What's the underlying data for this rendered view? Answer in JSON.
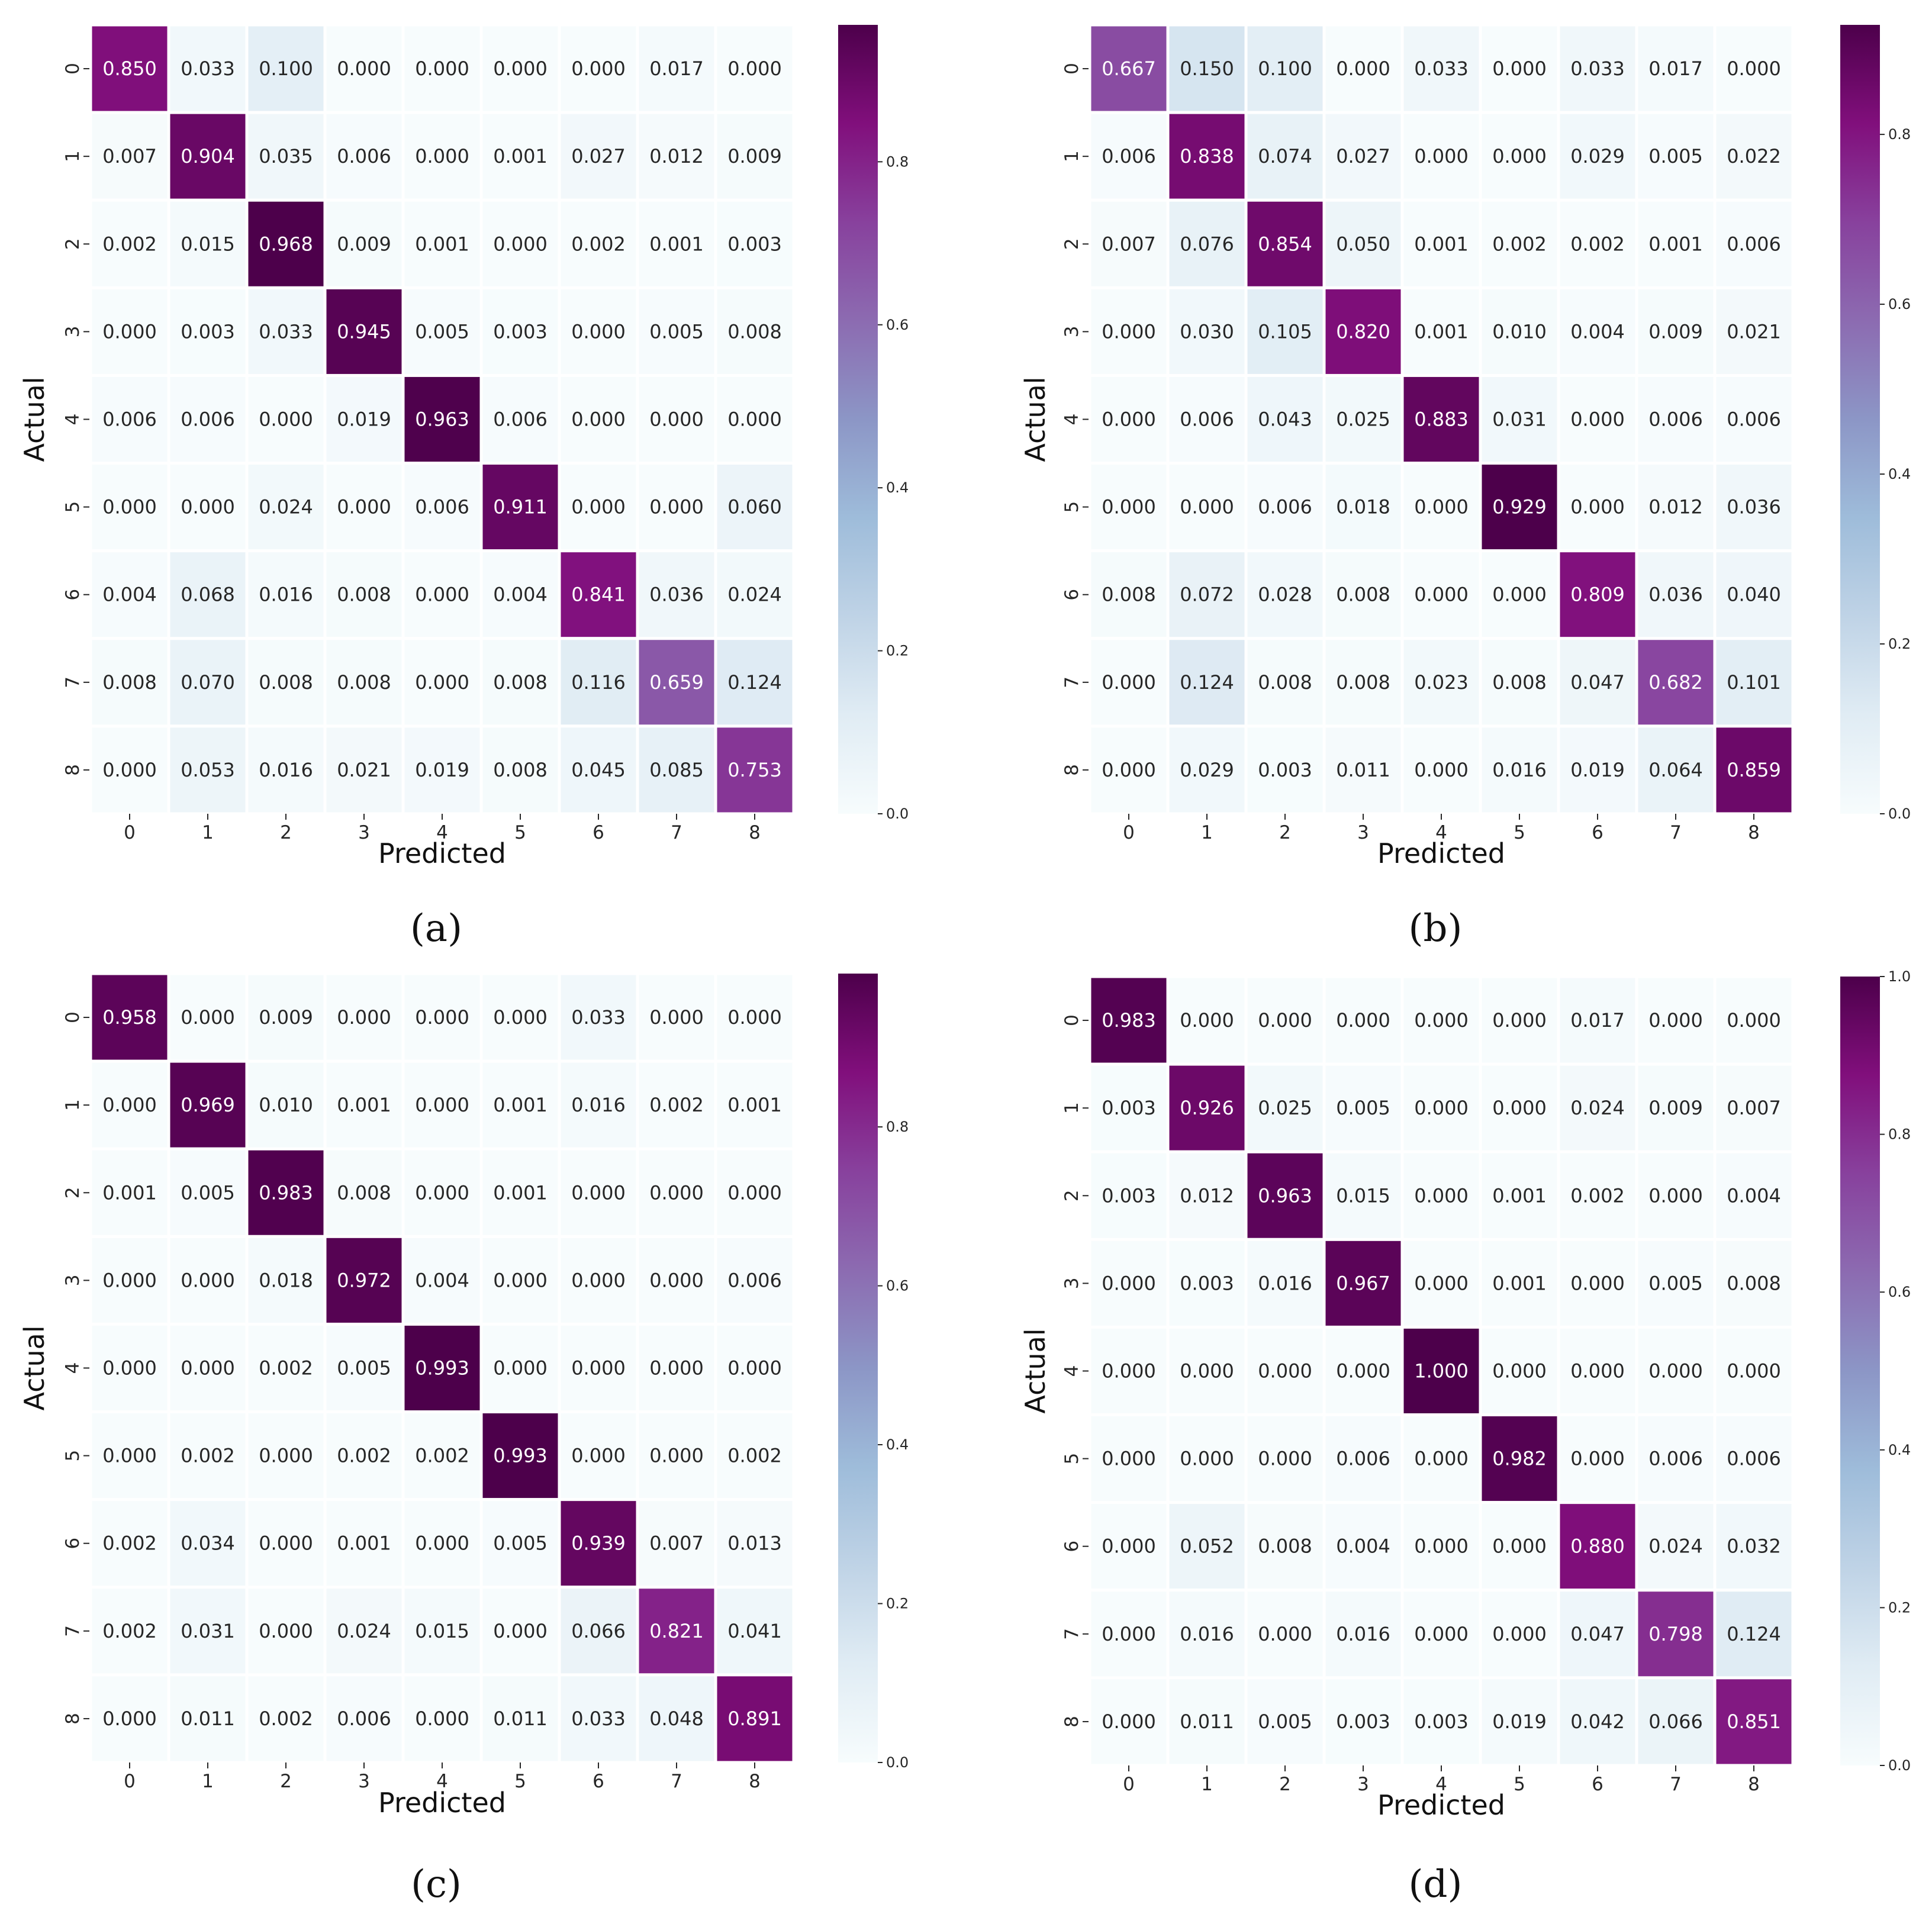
{
  "colormap": [
    "#f7fcfd",
    "#e0ecf4",
    "#bfd3e6",
    "#9ebcda",
    "#8c96c6",
    "#8c6bb1",
    "#88419d",
    "#810f7c",
    "#4d004b"
  ],
  "chart_data": [
    {
      "type": "heatmap",
      "panel_label": "(a)",
      "xlabel": "Predicted",
      "ylabel": "Actual",
      "categories": [
        "0",
        "1",
        "2",
        "3",
        "4",
        "5",
        "6",
        "7",
        "8"
      ],
      "colorbar": {
        "range": [
          0,
          0.968
        ],
        "ticks": [
          "0.0",
          "0.2",
          "0.4",
          "0.6",
          "0.8"
        ]
      },
      "matrix": [
        [
          "0.850",
          "0.033",
          "0.100",
          "0.000",
          "0.000",
          "0.000",
          "0.000",
          "0.017",
          "0.000"
        ],
        [
          "0.007",
          "0.904",
          "0.035",
          "0.006",
          "0.000",
          "0.001",
          "0.027",
          "0.012",
          "0.009"
        ],
        [
          "0.002",
          "0.015",
          "0.968",
          "0.009",
          "0.001",
          "0.000",
          "0.002",
          "0.001",
          "0.003"
        ],
        [
          "0.000",
          "0.003",
          "0.033",
          "0.945",
          "0.005",
          "0.003",
          "0.000",
          "0.005",
          "0.008"
        ],
        [
          "0.006",
          "0.006",
          "0.000",
          "0.019",
          "0.963",
          "0.006",
          "0.000",
          "0.000",
          "0.000"
        ],
        [
          "0.000",
          "0.000",
          "0.024",
          "0.000",
          "0.006",
          "0.911",
          "0.000",
          "0.000",
          "0.060"
        ],
        [
          "0.004",
          "0.068",
          "0.016",
          "0.008",
          "0.000",
          "0.004",
          "0.841",
          "0.036",
          "0.024"
        ],
        [
          "0.008",
          "0.070",
          "0.008",
          "0.008",
          "0.000",
          "0.008",
          "0.116",
          "0.659",
          "0.124"
        ],
        [
          "0.000",
          "0.053",
          "0.016",
          "0.021",
          "0.019",
          "0.008",
          "0.045",
          "0.085",
          "0.753"
        ]
      ]
    },
    {
      "type": "heatmap",
      "panel_label": "(b)",
      "xlabel": "Predicted",
      "ylabel": "Actual",
      "categories": [
        "0",
        "1",
        "2",
        "3",
        "4",
        "5",
        "6",
        "7",
        "8"
      ],
      "colorbar": {
        "range": [
          0,
          0.929
        ],
        "ticks": [
          "0.0",
          "0.2",
          "0.4",
          "0.6",
          "0.8"
        ]
      },
      "matrix": [
        [
          "0.667",
          "0.150",
          "0.100",
          "0.000",
          "0.033",
          "0.000",
          "0.033",
          "0.017",
          "0.000"
        ],
        [
          "0.006",
          "0.838",
          "0.074",
          "0.027",
          "0.000",
          "0.000",
          "0.029",
          "0.005",
          "0.022"
        ],
        [
          "0.007",
          "0.076",
          "0.854",
          "0.050",
          "0.001",
          "0.002",
          "0.002",
          "0.001",
          "0.006"
        ],
        [
          "0.000",
          "0.030",
          "0.105",
          "0.820",
          "0.001",
          "0.010",
          "0.004",
          "0.009",
          "0.021"
        ],
        [
          "0.000",
          "0.006",
          "0.043",
          "0.025",
          "0.883",
          "0.031",
          "0.000",
          "0.006",
          "0.006"
        ],
        [
          "0.000",
          "0.000",
          "0.006",
          "0.018",
          "0.000",
          "0.929",
          "0.000",
          "0.012",
          "0.036"
        ],
        [
          "0.008",
          "0.072",
          "0.028",
          "0.008",
          "0.000",
          "0.000",
          "0.809",
          "0.036",
          "0.040"
        ],
        [
          "0.000",
          "0.124",
          "0.008",
          "0.008",
          "0.023",
          "0.008",
          "0.047",
          "0.682",
          "0.101"
        ],
        [
          "0.000",
          "0.029",
          "0.003",
          "0.011",
          "0.000",
          "0.016",
          "0.019",
          "0.064",
          "0.859"
        ]
      ]
    },
    {
      "type": "heatmap",
      "panel_label": "(c)",
      "xlabel": "Predicted",
      "ylabel": "Actual",
      "categories": [
        "0",
        "1",
        "2",
        "3",
        "4",
        "5",
        "6",
        "7",
        "8"
      ],
      "colorbar": {
        "range": [
          0,
          0.993
        ],
        "ticks": [
          "0.0",
          "0.2",
          "0.4",
          "0.6",
          "0.8"
        ]
      },
      "matrix": [
        [
          "0.958",
          "0.000",
          "0.009",
          "0.000",
          "0.000",
          "0.000",
          "0.033",
          "0.000",
          "0.000"
        ],
        [
          "0.000",
          "0.969",
          "0.010",
          "0.001",
          "0.000",
          "0.001",
          "0.016",
          "0.002",
          "0.001"
        ],
        [
          "0.001",
          "0.005",
          "0.983",
          "0.008",
          "0.000",
          "0.001",
          "0.000",
          "0.000",
          "0.000"
        ],
        [
          "0.000",
          "0.000",
          "0.018",
          "0.972",
          "0.004",
          "0.000",
          "0.000",
          "0.000",
          "0.006"
        ],
        [
          "0.000",
          "0.000",
          "0.002",
          "0.005",
          "0.993",
          "0.000",
          "0.000",
          "0.000",
          "0.000"
        ],
        [
          "0.000",
          "0.002",
          "0.000",
          "0.002",
          "0.002",
          "0.993",
          "0.000",
          "0.000",
          "0.002"
        ],
        [
          "0.002",
          "0.034",
          "0.000",
          "0.001",
          "0.000",
          "0.005",
          "0.939",
          "0.007",
          "0.013"
        ],
        [
          "0.002",
          "0.031",
          "0.000",
          "0.024",
          "0.015",
          "0.000",
          "0.066",
          "0.821",
          "0.041"
        ],
        [
          "0.000",
          "0.011",
          "0.002",
          "0.006",
          "0.000",
          "0.011",
          "0.033",
          "0.048",
          "0.891"
        ]
      ]
    },
    {
      "type": "heatmap",
      "panel_label": "(d)",
      "xlabel": "Predicted",
      "ylabel": "Actual",
      "categories": [
        "0",
        "1",
        "2",
        "3",
        "4",
        "5",
        "6",
        "7",
        "8"
      ],
      "colorbar": {
        "range": [
          0,
          1.0
        ],
        "ticks": [
          "0.0",
          "0.2",
          "0.4",
          "0.6",
          "0.8",
          "1.0"
        ]
      },
      "matrix": [
        [
          "0.983",
          "0.000",
          "0.000",
          "0.000",
          "0.000",
          "0.000",
          "0.017",
          "0.000",
          "0.000"
        ],
        [
          "0.003",
          "0.926",
          "0.025",
          "0.005",
          "0.000",
          "0.000",
          "0.024",
          "0.009",
          "0.007"
        ],
        [
          "0.003",
          "0.012",
          "0.963",
          "0.015",
          "0.000",
          "0.001",
          "0.002",
          "0.000",
          "0.004"
        ],
        [
          "0.000",
          "0.003",
          "0.016",
          "0.967",
          "0.000",
          "0.001",
          "0.000",
          "0.005",
          "0.008"
        ],
        [
          "0.000",
          "0.000",
          "0.000",
          "0.000",
          "1.000",
          "0.000",
          "0.000",
          "0.000",
          "0.000"
        ],
        [
          "0.000",
          "0.000",
          "0.000",
          "0.006",
          "0.000",
          "0.982",
          "0.000",
          "0.006",
          "0.006"
        ],
        [
          "0.000",
          "0.052",
          "0.008",
          "0.004",
          "0.000",
          "0.000",
          "0.880",
          "0.024",
          "0.032"
        ],
        [
          "0.000",
          "0.016",
          "0.000",
          "0.016",
          "0.000",
          "0.000",
          "0.047",
          "0.798",
          "0.124"
        ],
        [
          "0.000",
          "0.011",
          "0.005",
          "0.003",
          "0.003",
          "0.019",
          "0.042",
          "0.066",
          "0.851"
        ]
      ]
    }
  ]
}
